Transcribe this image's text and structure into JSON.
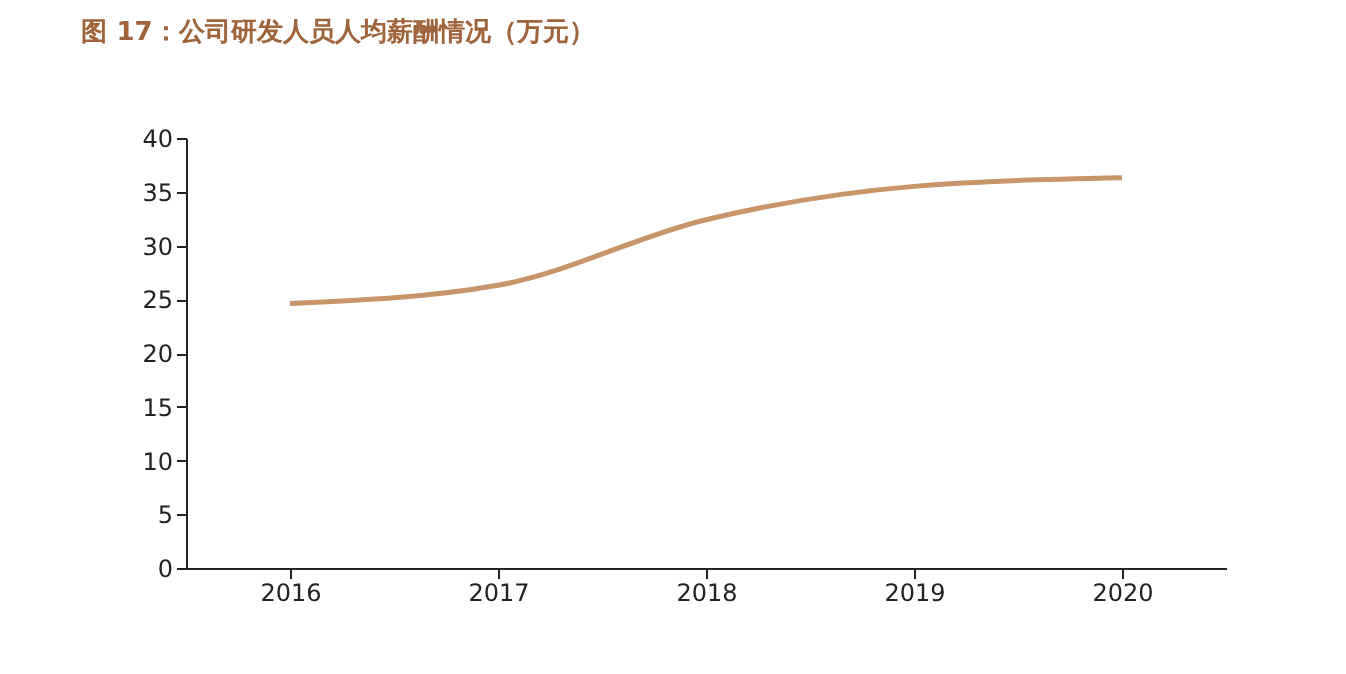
{
  "chart_data": {
    "type": "line",
    "title": "图 17：公司研发人员人均薪酬情况（万元）",
    "categories": [
      "2016",
      "2017",
      "2018",
      "2019",
      "2020"
    ],
    "series": [
      {
        "color": "#c8956a",
        "values": [
          24.6,
          26.3,
          32.4,
          35.5,
          36.3
        ]
      }
    ],
    "ylim": [
      0,
      40
    ],
    "yticks": [
      0,
      5,
      10,
      15,
      20,
      25,
      30,
      35,
      40
    ],
    "grid": false,
    "legend": false,
    "marker": "none",
    "line_style": "solid"
  }
}
